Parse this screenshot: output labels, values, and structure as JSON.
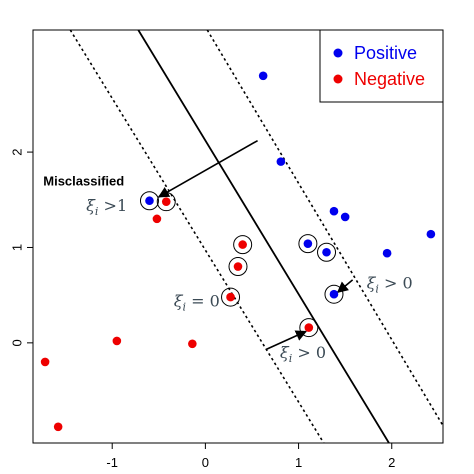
{
  "chart_data": {
    "type": "scatter",
    "xlim": [
      -1.85,
      2.55
    ],
    "ylim": [
      -1.05,
      3.28
    ],
    "x_ticks": [
      -1,
      0,
      1,
      2
    ],
    "y_ticks": [
      0,
      1,
      2
    ],
    "grid": false,
    "legend_position": "top-right",
    "legend": [
      {
        "label": "Positive",
        "color": "#0000ee"
      },
      {
        "label": "Negative",
        "color": "#ee0000"
      }
    ],
    "series": [
      {
        "name": "Positive",
        "color": "#0000ee",
        "points": [
          {
            "x": 0.62,
            "y": 2.8,
            "circled": false
          },
          {
            "x": 0.81,
            "y": 1.9,
            "circled": false
          },
          {
            "x": 1.38,
            "y": 1.38,
            "circled": false
          },
          {
            "x": 1.5,
            "y": 1.32,
            "circled": false
          },
          {
            "x": 2.42,
            "y": 1.14,
            "circled": false
          },
          {
            "x": 1.95,
            "y": 0.94,
            "circled": false
          },
          {
            "x": -0.6,
            "y": 1.49,
            "circled": true
          },
          {
            "x": 1.1,
            "y": 1.04,
            "circled": true
          },
          {
            "x": 1.3,
            "y": 0.95,
            "circled": true
          },
          {
            "x": 1.38,
            "y": 0.51,
            "circled": true
          }
        ]
      },
      {
        "name": "Negative",
        "color": "#ee0000",
        "points": [
          {
            "x": -0.42,
            "y": 1.48,
            "circled": true
          },
          {
            "x": -0.52,
            "y": 1.3,
            "circled": false
          },
          {
            "x": 0.4,
            "y": 1.03,
            "circled": true
          },
          {
            "x": 0.35,
            "y": 0.8,
            "circled": true
          },
          {
            "x": 0.27,
            "y": 0.48,
            "circled": true
          },
          {
            "x": 1.11,
            "y": 0.16,
            "circled": true
          },
          {
            "x": -1.72,
            "y": -0.2,
            "circled": false
          },
          {
            "x": -0.95,
            "y": 0.02,
            "circled": false
          },
          {
            "x": -0.14,
            "y": -0.01,
            "circled": false
          },
          {
            "x": -1.58,
            "y": -0.88,
            "circled": false
          }
        ]
      }
    ],
    "lines": [
      {
        "style": "solid",
        "x1": -0.72,
        "y1": 3.28,
        "x2": 1.97,
        "y2": -1.05
      },
      {
        "style": "dotted",
        "x1": -1.45,
        "y1": 3.28,
        "x2": 1.27,
        "y2": -1.05
      },
      {
        "style": "dotted",
        "x1": 0.02,
        "y1": 3.28,
        "x2": 2.6,
        "y2": -0.95
      }
    ],
    "arrows": [
      {
        "x1": 0.56,
        "y1": 2.12,
        "x2": -0.5,
        "y2": 1.53
      },
      {
        "x1": 0.65,
        "y1": -0.07,
        "x2": 1.08,
        "y2": 0.12
      },
      {
        "x1": 1.58,
        "y1": 0.66,
        "x2": 1.42,
        "y2": 0.53
      }
    ],
    "annotations": [
      {
        "text": "Misclassified",
        "x": -1.74,
        "y": 1.65,
        "style": "bold"
      },
      {
        "text": "ξi >1",
        "x": -1.28,
        "y": 1.38,
        "style": "math"
      },
      {
        "text": "ξi = 0",
        "x": -0.34,
        "y": 0.38,
        "style": "math"
      },
      {
        "text": "ξi > 0",
        "x": 0.8,
        "y": -0.16,
        "style": "math"
      },
      {
        "text": "ξi > 0",
        "x": 1.73,
        "y": 0.57,
        "style": "math"
      }
    ]
  }
}
